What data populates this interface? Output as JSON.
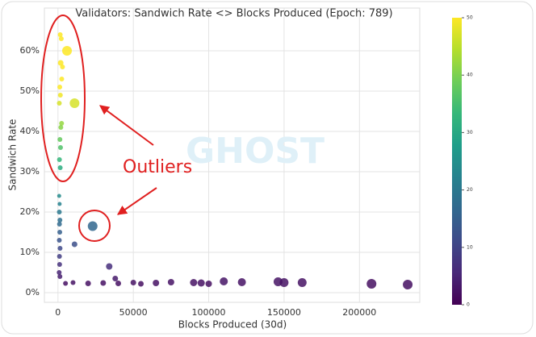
{
  "chart_data": {
    "type": "scatter",
    "title": "Validators: Sandwich Rate <> Blocks Produced (Epoch: 789)",
    "xlabel": "Blocks Produced (30d)",
    "ylabel": "Sandwich Rate",
    "annotation": "Outliers",
    "watermark": "GHOST",
    "x": [
      1500,
      2200,
      1800,
      3000,
      2500,
      1200,
      1600,
      900,
      2400,
      1900,
      1300,
      1700,
      1000,
      1500,
      6000,
      11000,
      800,
      1100,
      900,
      1300,
      1000,
      1200,
      900,
      1400,
      1000,
      1100,
      800,
      1300,
      23000,
      11000,
      34000,
      38000,
      5000,
      10000,
      20000,
      30000,
      40000,
      50000,
      55000,
      65000,
      75000,
      90000,
      95000,
      100000,
      110000,
      122000,
      146000,
      150000,
      162000,
      208000,
      232000
    ],
    "values": [
      64,
      63,
      57,
      56,
      53,
      51,
      49,
      47,
      42,
      41,
      38,
      36,
      33,
      31,
      60,
      47,
      24,
      22,
      20,
      18,
      17,
      15,
      13,
      11,
      9,
      7,
      5,
      4,
      16.5,
      12,
      6.5,
      3.5,
      2.3,
      2.5,
      2.3,
      2.4,
      2.3,
      2.5,
      2.2,
      2.4,
      2.6,
      2.5,
      2.4,
      2.2,
      2.8,
      2.6,
      2.7,
      2.5,
      2.5,
      2.2,
      2
    ],
    "sizes": [
      3,
      3,
      3.5,
      3,
      3,
      3,
      3,
      3,
      3,
      3,
      3,
      3,
      3,
      3,
      6,
      6,
      2.5,
      2.5,
      3,
      3,
      3,
      3,
      3,
      3,
      3,
      3,
      3,
      3,
      6,
      3.5,
      4,
      3.5,
      3,
      3,
      3.5,
      3.5,
      3.5,
      3.5,
      3.5,
      4,
      4,
      4.5,
      4.5,
      4,
      5,
      5,
      5.5,
      5.5,
      5.5,
      6,
      6
    ],
    "xlim": [
      -9000,
      240000
    ],
    "ylim": [
      -2.4,
      70.6
    ],
    "xticks": [
      0,
      50000,
      100000,
      150000,
      200000
    ],
    "yticks": [
      {
        "value": 0,
        "label": "0%"
      },
      {
        "value": 10,
        "label": "10%"
      },
      {
        "value": 20,
        "label": "20%"
      },
      {
        "value": 30,
        "label": "30%"
      },
      {
        "value": 40,
        "label": "40%"
      },
      {
        "value": 50,
        "label": "50%"
      },
      {
        "value": 60,
        "label": "60%"
      }
    ],
    "clim": [
      0,
      50
    ],
    "cticks": [
      0,
      10,
      20,
      30,
      40,
      50
    ],
    "colormap": "viridis",
    "grid": true
  }
}
